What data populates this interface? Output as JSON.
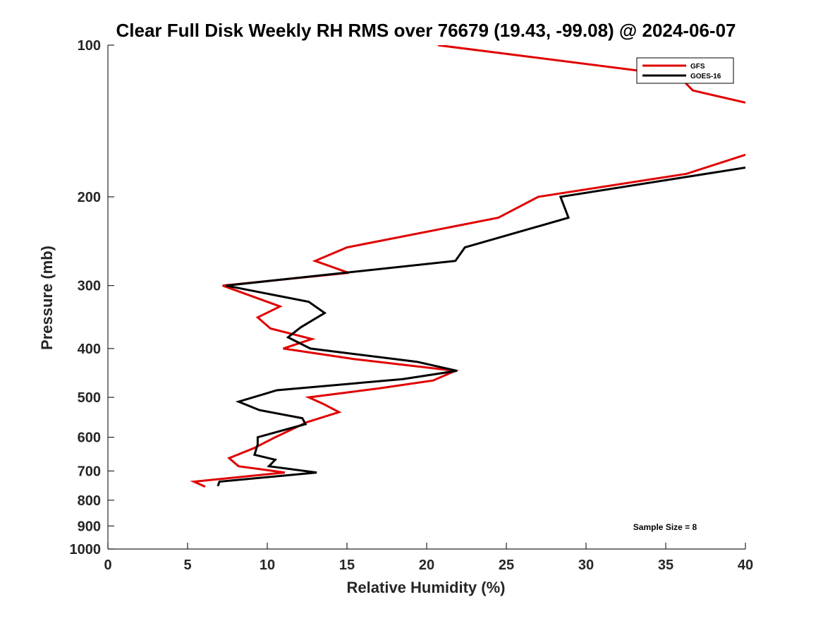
{
  "chart_data": {
    "type": "line",
    "title": "Clear Full Disk Weekly RH RMS over 76679 (19.43, -99.08) @ 2024-06-07",
    "xlabel": "Relative Humidity (%)",
    "ylabel": "Pressure (mb)",
    "xlim": [
      0,
      40
    ],
    "ylim": [
      100,
      1000
    ],
    "yscale": "log",
    "y_reversed": true,
    "xticks": [
      0,
      5,
      10,
      15,
      20,
      25,
      30,
      35,
      40
    ],
    "yticks": [
      100,
      200,
      300,
      400,
      500,
      600,
      700,
      800,
      900,
      1000
    ],
    "grid": false,
    "legend_position": "top-right",
    "annotation": "Sample Size = 8",
    "series": [
      {
        "name": "GFS",
        "color": "#e00000",
        "x": [
          20.7,
          35.8,
          36.7,
          40.0,
          null,
          40.0,
          36.3,
          27.0,
          24.5,
          15.0,
          13.0,
          15.1,
          7.2,
          10.8,
          9.4,
          10.2,
          12.8,
          11.0,
          15.5,
          21.8,
          20.4,
          17.0,
          12.6,
          13.5,
          14.5,
          12.5,
          10.5,
          9.2,
          7.6,
          8.2,
          11.1,
          5.4,
          6.1
        ],
        "y": [
          100,
          115,
          123,
          130,
          null,
          165,
          180,
          200,
          220,
          252,
          268,
          283,
          300,
          330,
          347,
          365,
          383,
          400,
          420,
          443,
          463,
          480,
          500,
          515,
          535,
          560,
          600,
          630,
          660,
          685,
          705,
          735,
          752
        ]
      },
      {
        "name": "GOES-16",
        "color": "#000000",
        "x": [
          40.0,
          28.4,
          28.9,
          22.4,
          21.8,
          7.4,
          12.6,
          13.6,
          12.1,
          11.3,
          12.7,
          19.4,
          21.9,
          18.5,
          10.6,
          8.2,
          9.5,
          12.2,
          12.4,
          9.4,
          9.4,
          9.2,
          10.5,
          10.1,
          13.1,
          7.0,
          6.9
        ],
        "y": [
          175,
          200,
          220,
          252,
          268,
          300,
          323,
          340,
          363,
          380,
          400,
          425,
          443,
          460,
          484,
          510,
          530,
          550,
          565,
          600,
          620,
          650,
          665,
          685,
          705,
          735,
          750
        ]
      }
    ]
  }
}
